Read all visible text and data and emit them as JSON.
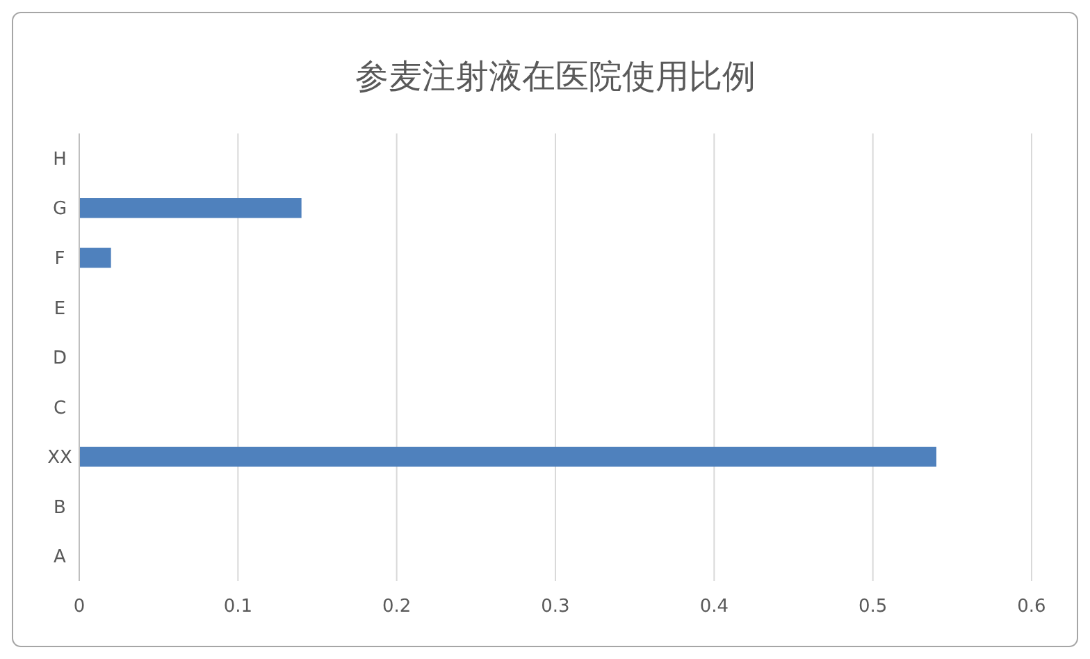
{
  "chart_data": {
    "type": "bar",
    "orientation": "horizontal",
    "title": "参麦注射液在医院使用比例",
    "categories": [
      "H",
      "G",
      "F",
      "E",
      "D",
      "C",
      "XX",
      "B",
      "A"
    ],
    "values": [
      null,
      0.14,
      0.02,
      null,
      null,
      null,
      0.54,
      null,
      null
    ],
    "color": "#4f81bd",
    "xlim": [
      0,
      0.6
    ],
    "xticks": [
      0,
      0.1,
      0.2,
      0.3,
      0.4,
      0.5,
      0.6
    ],
    "grid": "x"
  }
}
